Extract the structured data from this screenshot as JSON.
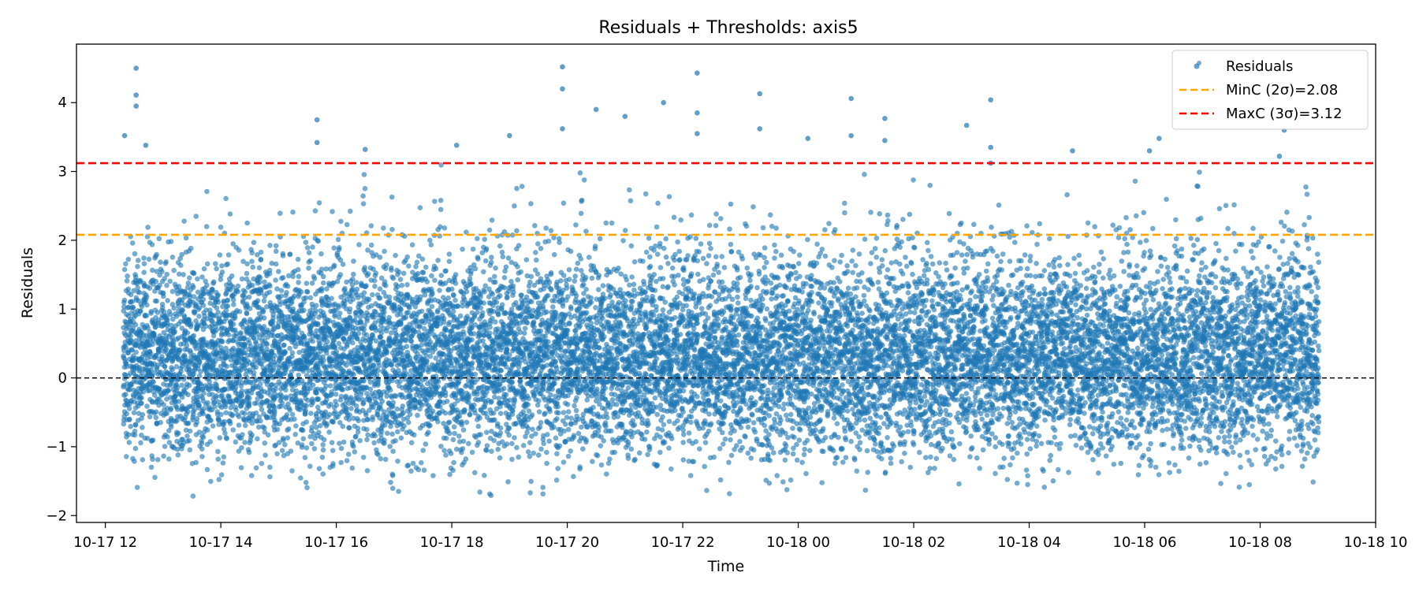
{
  "chart_data": {
    "type": "scatter",
    "title": "Residuals + Thresholds: axis5",
    "xlabel": "Time",
    "ylabel": "Residuals",
    "x_range": [
      "2024-10-17 11:30",
      "2024-10-18 10:00"
    ],
    "ylim": [
      -2.1,
      4.85
    ],
    "x_ticks": [
      {
        "t": "2024-10-17 12:00",
        "label": "10-17 12"
      },
      {
        "t": "2024-10-17 14:00",
        "label": "10-17 14"
      },
      {
        "t": "2024-10-17 16:00",
        "label": "10-17 16"
      },
      {
        "t": "2024-10-17 18:00",
        "label": "10-17 18"
      },
      {
        "t": "2024-10-17 20:00",
        "label": "10-17 20"
      },
      {
        "t": "2024-10-17 22:00",
        "label": "10-17 22"
      },
      {
        "t": "2024-10-18 00:00",
        "label": "10-18 00"
      },
      {
        "t": "2024-10-18 02:00",
        "label": "10-18 02"
      },
      {
        "t": "2024-10-18 04:00",
        "label": "10-18 04"
      },
      {
        "t": "2024-10-18 06:00",
        "label": "10-18 06"
      },
      {
        "t": "2024-10-18 08:00",
        "label": "10-18 08"
      },
      {
        "t": "2024-10-18 10:00",
        "label": "10-18 10"
      }
    ],
    "y_ticks": [
      {
        "v": -2,
        "label": "−2"
      },
      {
        "v": -1,
        "label": "−1"
      },
      {
        "v": 0,
        "label": "0"
      },
      {
        "v": 1,
        "label": "1"
      },
      {
        "v": 2,
        "label": "2"
      },
      {
        "v": 3,
        "label": "3"
      },
      {
        "v": 4,
        "label": "4"
      }
    ],
    "grid": false,
    "legend_position": "top-right",
    "series": [
      {
        "name": "Residuals",
        "kind": "scatter",
        "color": "#1f77b4",
        "t_start": "2024-10-17 12:20",
        "t_end": "2024-10-18 09:00",
        "y_floor_start": -1.76,
        "y_floor_end": -1.64,
        "outliers": [
          {
            "t": "2024-10-17 12:32",
            "y": 4.5
          },
          {
            "t": "2024-10-17 12:32",
            "y": 4.11
          },
          {
            "t": "2024-10-17 12:32",
            "y": 3.95
          },
          {
            "t": "2024-10-17 12:20",
            "y": 3.52
          },
          {
            "t": "2024-10-17 12:42",
            "y": 3.38
          },
          {
            "t": "2024-10-17 15:40",
            "y": 3.75
          },
          {
            "t": "2024-10-17 15:40",
            "y": 3.42
          },
          {
            "t": "2024-10-17 16:30",
            "y": 3.32
          },
          {
            "t": "2024-10-17 18:05",
            "y": 3.38
          },
          {
            "t": "2024-10-17 19:00",
            "y": 3.52
          },
          {
            "t": "2024-10-17 19:55",
            "y": 4.52
          },
          {
            "t": "2024-10-17 19:55",
            "y": 4.2
          },
          {
            "t": "2024-10-17 19:55",
            "y": 3.62
          },
          {
            "t": "2024-10-17 20:30",
            "y": 3.9
          },
          {
            "t": "2024-10-17 21:00",
            "y": 3.8
          },
          {
            "t": "2024-10-17 21:40",
            "y": 4.0
          },
          {
            "t": "2024-10-17 22:15",
            "y": 4.43
          },
          {
            "t": "2024-10-17 22:15",
            "y": 3.85
          },
          {
            "t": "2024-10-17 22:15",
            "y": 3.55
          },
          {
            "t": "2024-10-17 23:20",
            "y": 4.13
          },
          {
            "t": "2024-10-17 23:20",
            "y": 3.62
          },
          {
            "t": "2024-10-18 00:10",
            "y": 3.48
          },
          {
            "t": "2024-10-18 00:55",
            "y": 4.06
          },
          {
            "t": "2024-10-18 00:55",
            "y": 3.52
          },
          {
            "t": "2024-10-18 01:30",
            "y": 3.77
          },
          {
            "t": "2024-10-18 01:30",
            "y": 3.45
          },
          {
            "t": "2024-10-18 02:55",
            "y": 3.67
          },
          {
            "t": "2024-10-18 03:20",
            "y": 4.04
          },
          {
            "t": "2024-10-18 03:20",
            "y": 3.35
          },
          {
            "t": "2024-10-18 03:20",
            "y": 3.12
          },
          {
            "t": "2024-10-18 04:45",
            "y": 3.3
          },
          {
            "t": "2024-10-18 06:15",
            "y": 3.48
          },
          {
            "t": "2024-10-18 06:05",
            "y": 3.3
          },
          {
            "t": "2024-10-18 08:25",
            "y": 3.6
          },
          {
            "t": "2024-10-18 08:20",
            "y": 3.22
          }
        ]
      },
      {
        "name": "MinC (2σ)=2.08",
        "kind": "hline",
        "y": 2.08,
        "color": "#ffa500",
        "dash": true
      },
      {
        "name": "MaxC (3σ)=3.12",
        "kind": "hline",
        "y": 3.12,
        "color": "#ff0000",
        "dash": true
      }
    ],
    "zero_line": {
      "y": 0,
      "color": "#000000",
      "dash": true
    }
  }
}
